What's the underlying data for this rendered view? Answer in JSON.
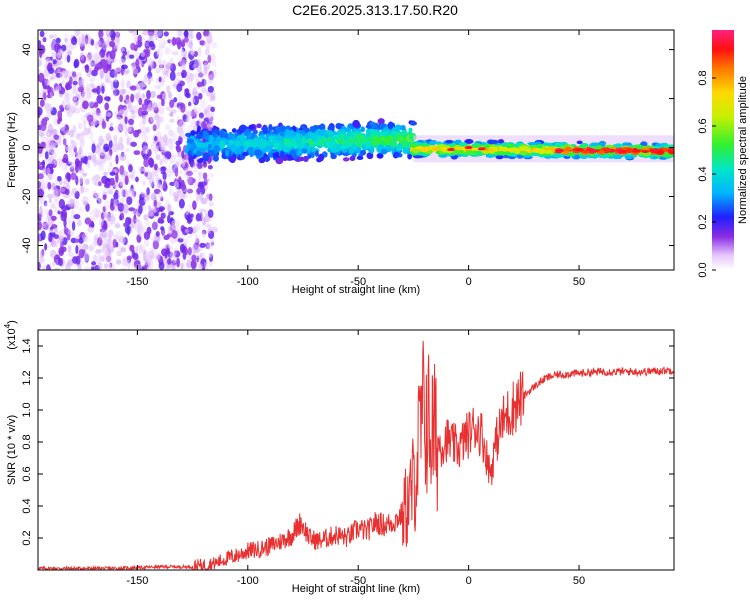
{
  "title": "C2E6.2025.313.17.50.R20",
  "chart_data": [
    {
      "type": "heatmap",
      "name": "spectrogram",
      "xlabel": "Height of straight line (km)",
      "ylabel": "Frequency (Hz)",
      "xlim": [
        -195,
        93
      ],
      "ylim": [
        -50,
        48
      ],
      "xticks": [
        -150,
        -100,
        -50,
        0,
        50
      ],
      "yticks": [
        -40,
        -20,
        0,
        20,
        40
      ],
      "colorbar": {
        "label": "Normalized spectral amplitude",
        "range": [
          0,
          1
        ],
        "ticks": [
          0.0,
          0.2,
          0.4,
          0.6,
          0.8
        ]
      },
      "bands": [
        {
          "x_start": -195,
          "x_end": -127,
          "f_low": -50,
          "f_high": 48,
          "amplitude": 0.15,
          "character": "diffuse noise"
        },
        {
          "x_start": -127,
          "x_end": -25,
          "f_low": -6,
          "f_high": 10,
          "amplitude": 0.35,
          "character": "broad return"
        },
        {
          "x_start": -25,
          "x_end": 93,
          "f_low": -3,
          "f_high": 2,
          "amplitude": 0.95,
          "character": "narrow strong return"
        }
      ]
    },
    {
      "type": "line",
      "name": "snr",
      "xlabel": "Height of straight line (km)",
      "ylabel": "SNR (10 * v/v)",
      "yscale_label": "(x10",
      "yscale_exp": "4",
      "xlim": [
        -195,
        93
      ],
      "ylim": [
        0,
        1.5
      ],
      "xticks": [
        -150,
        -100,
        -50,
        0,
        50
      ],
      "yticks": [
        0.2,
        0.4,
        0.6,
        0.8,
        1.0,
        1.2,
        1.4
      ],
      "series": [
        {
          "name": "SNR",
          "color": "#e83030",
          "x": [
            -195,
            -180,
            -160,
            -140,
            -125,
            -115,
            -110,
            -105,
            -100,
            -95,
            -90,
            -85,
            -80,
            -76,
            -72,
            -68,
            -64,
            -60,
            -55,
            -50,
            -46,
            -42,
            -38,
            -34,
            -30,
            -27,
            -24,
            -22,
            -20,
            -18,
            -16,
            -14,
            -12,
            -10,
            -7,
            -4,
            -2,
            0,
            3,
            6,
            8,
            10,
            12,
            15,
            18,
            22,
            26,
            30,
            35,
            40,
            50,
            60,
            70,
            80,
            93
          ],
          "y": [
            0.01,
            0.01,
            0.01,
            0.02,
            0.02,
            0.04,
            0.07,
            0.09,
            0.12,
            0.13,
            0.15,
            0.18,
            0.22,
            0.3,
            0.2,
            0.18,
            0.2,
            0.22,
            0.2,
            0.26,
            0.24,
            0.3,
            0.28,
            0.3,
            0.35,
            0.42,
            0.6,
            0.85,
            1.0,
            0.9,
            0.85,
            0.8,
            0.78,
            0.82,
            0.78,
            0.76,
            0.82,
            0.85,
            0.9,
            0.85,
            0.72,
            0.6,
            0.78,
            0.92,
            0.98,
            1.05,
            1.1,
            1.15,
            1.2,
            1.22,
            1.23,
            1.24,
            1.24,
            1.24,
            1.25
          ]
        }
      ]
    }
  ]
}
